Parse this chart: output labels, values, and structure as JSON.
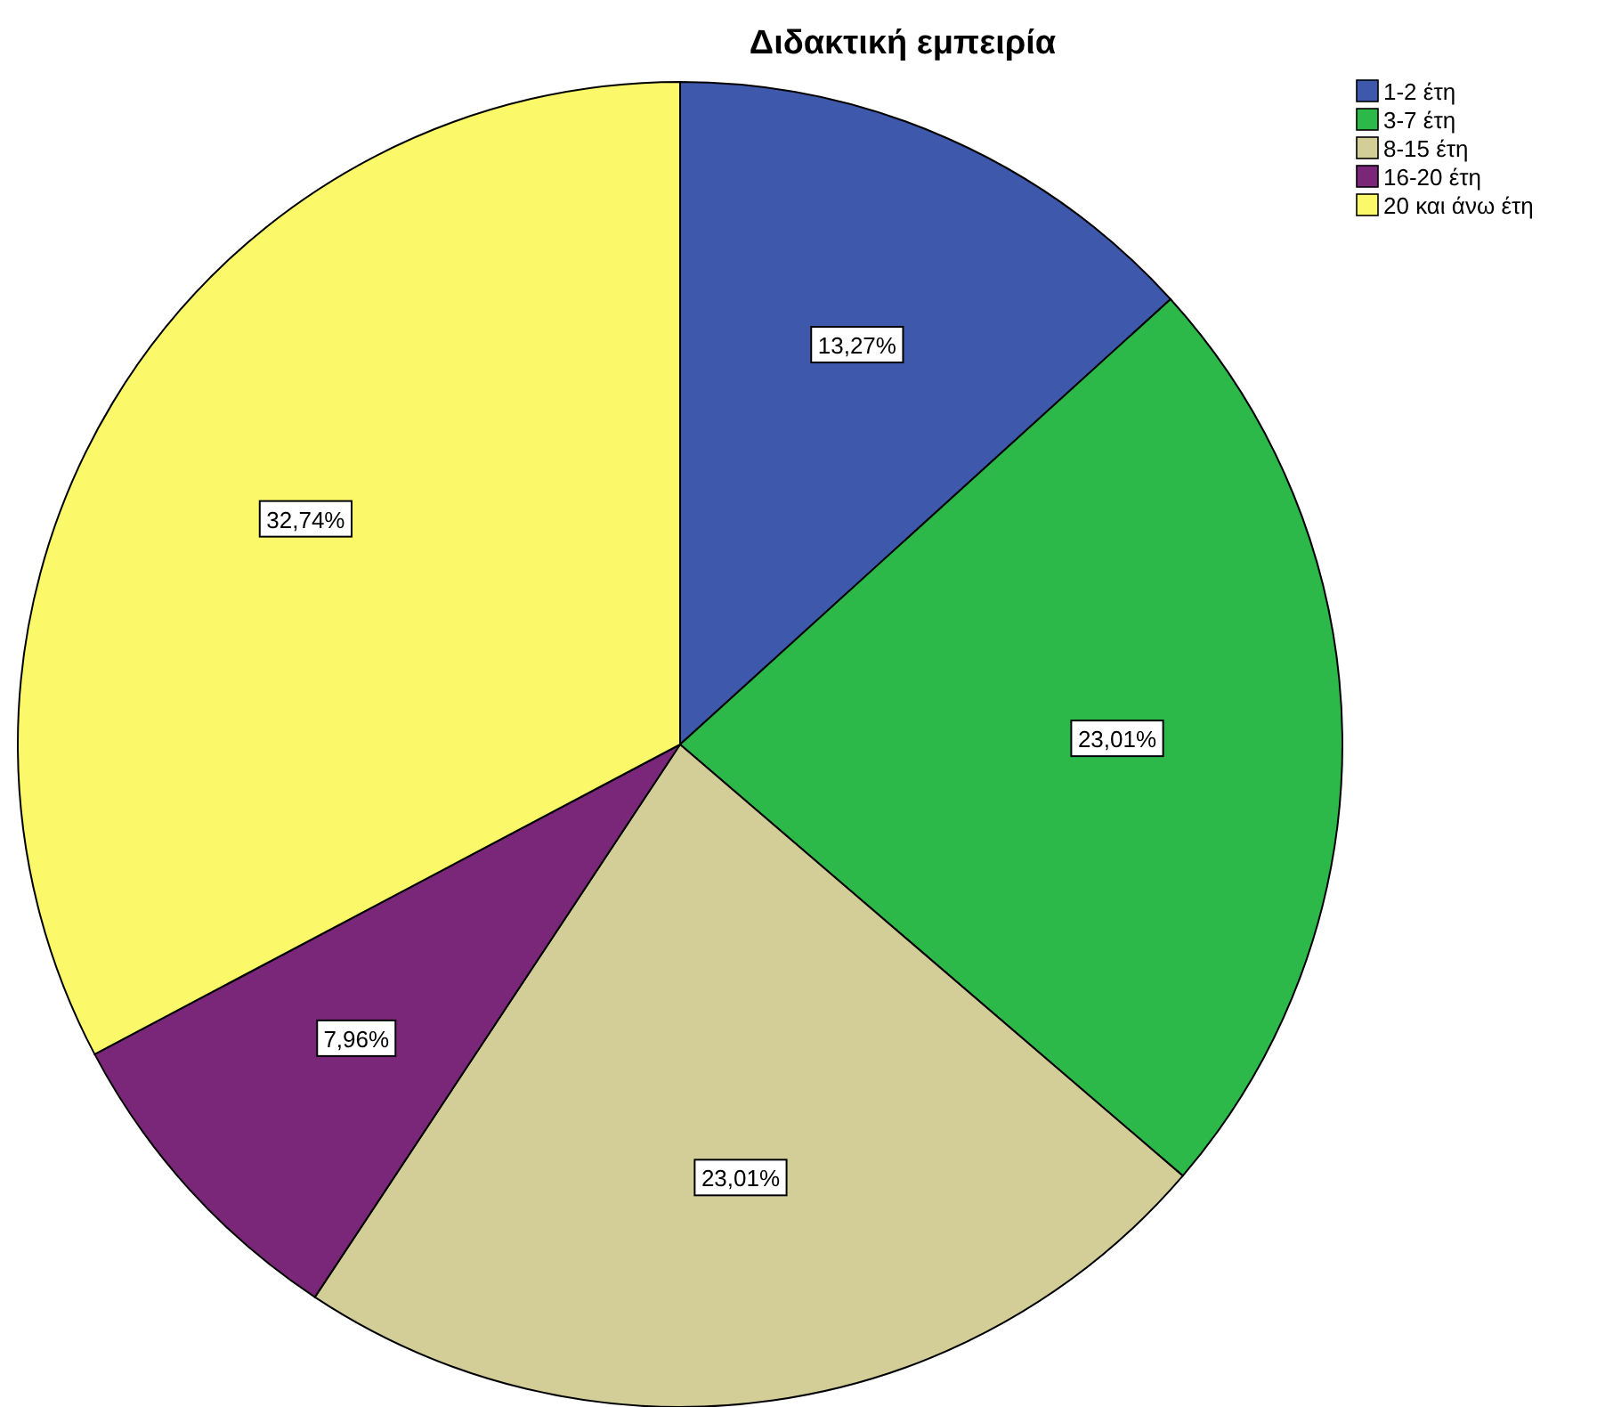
{
  "chart_data": {
    "type": "pie",
    "title": "Διδακτική εμπειρία",
    "categories": [
      "1-2 έτη",
      "3-7 έτη",
      "8-15 έτη",
      "16-20 έτη",
      "20 και άνω έτη"
    ],
    "values": [
      13.27,
      23.01,
      23.01,
      7.96,
      32.74
    ],
    "colors": [
      "#3e58ac",
      "#2db84a",
      "#d3ce97",
      "#7b2779",
      "#fbf969"
    ],
    "value_labels": [
      "13,27%",
      "23,01%",
      "23,01%",
      "7,96%",
      "32,74%"
    ],
    "legend": "top right"
  }
}
